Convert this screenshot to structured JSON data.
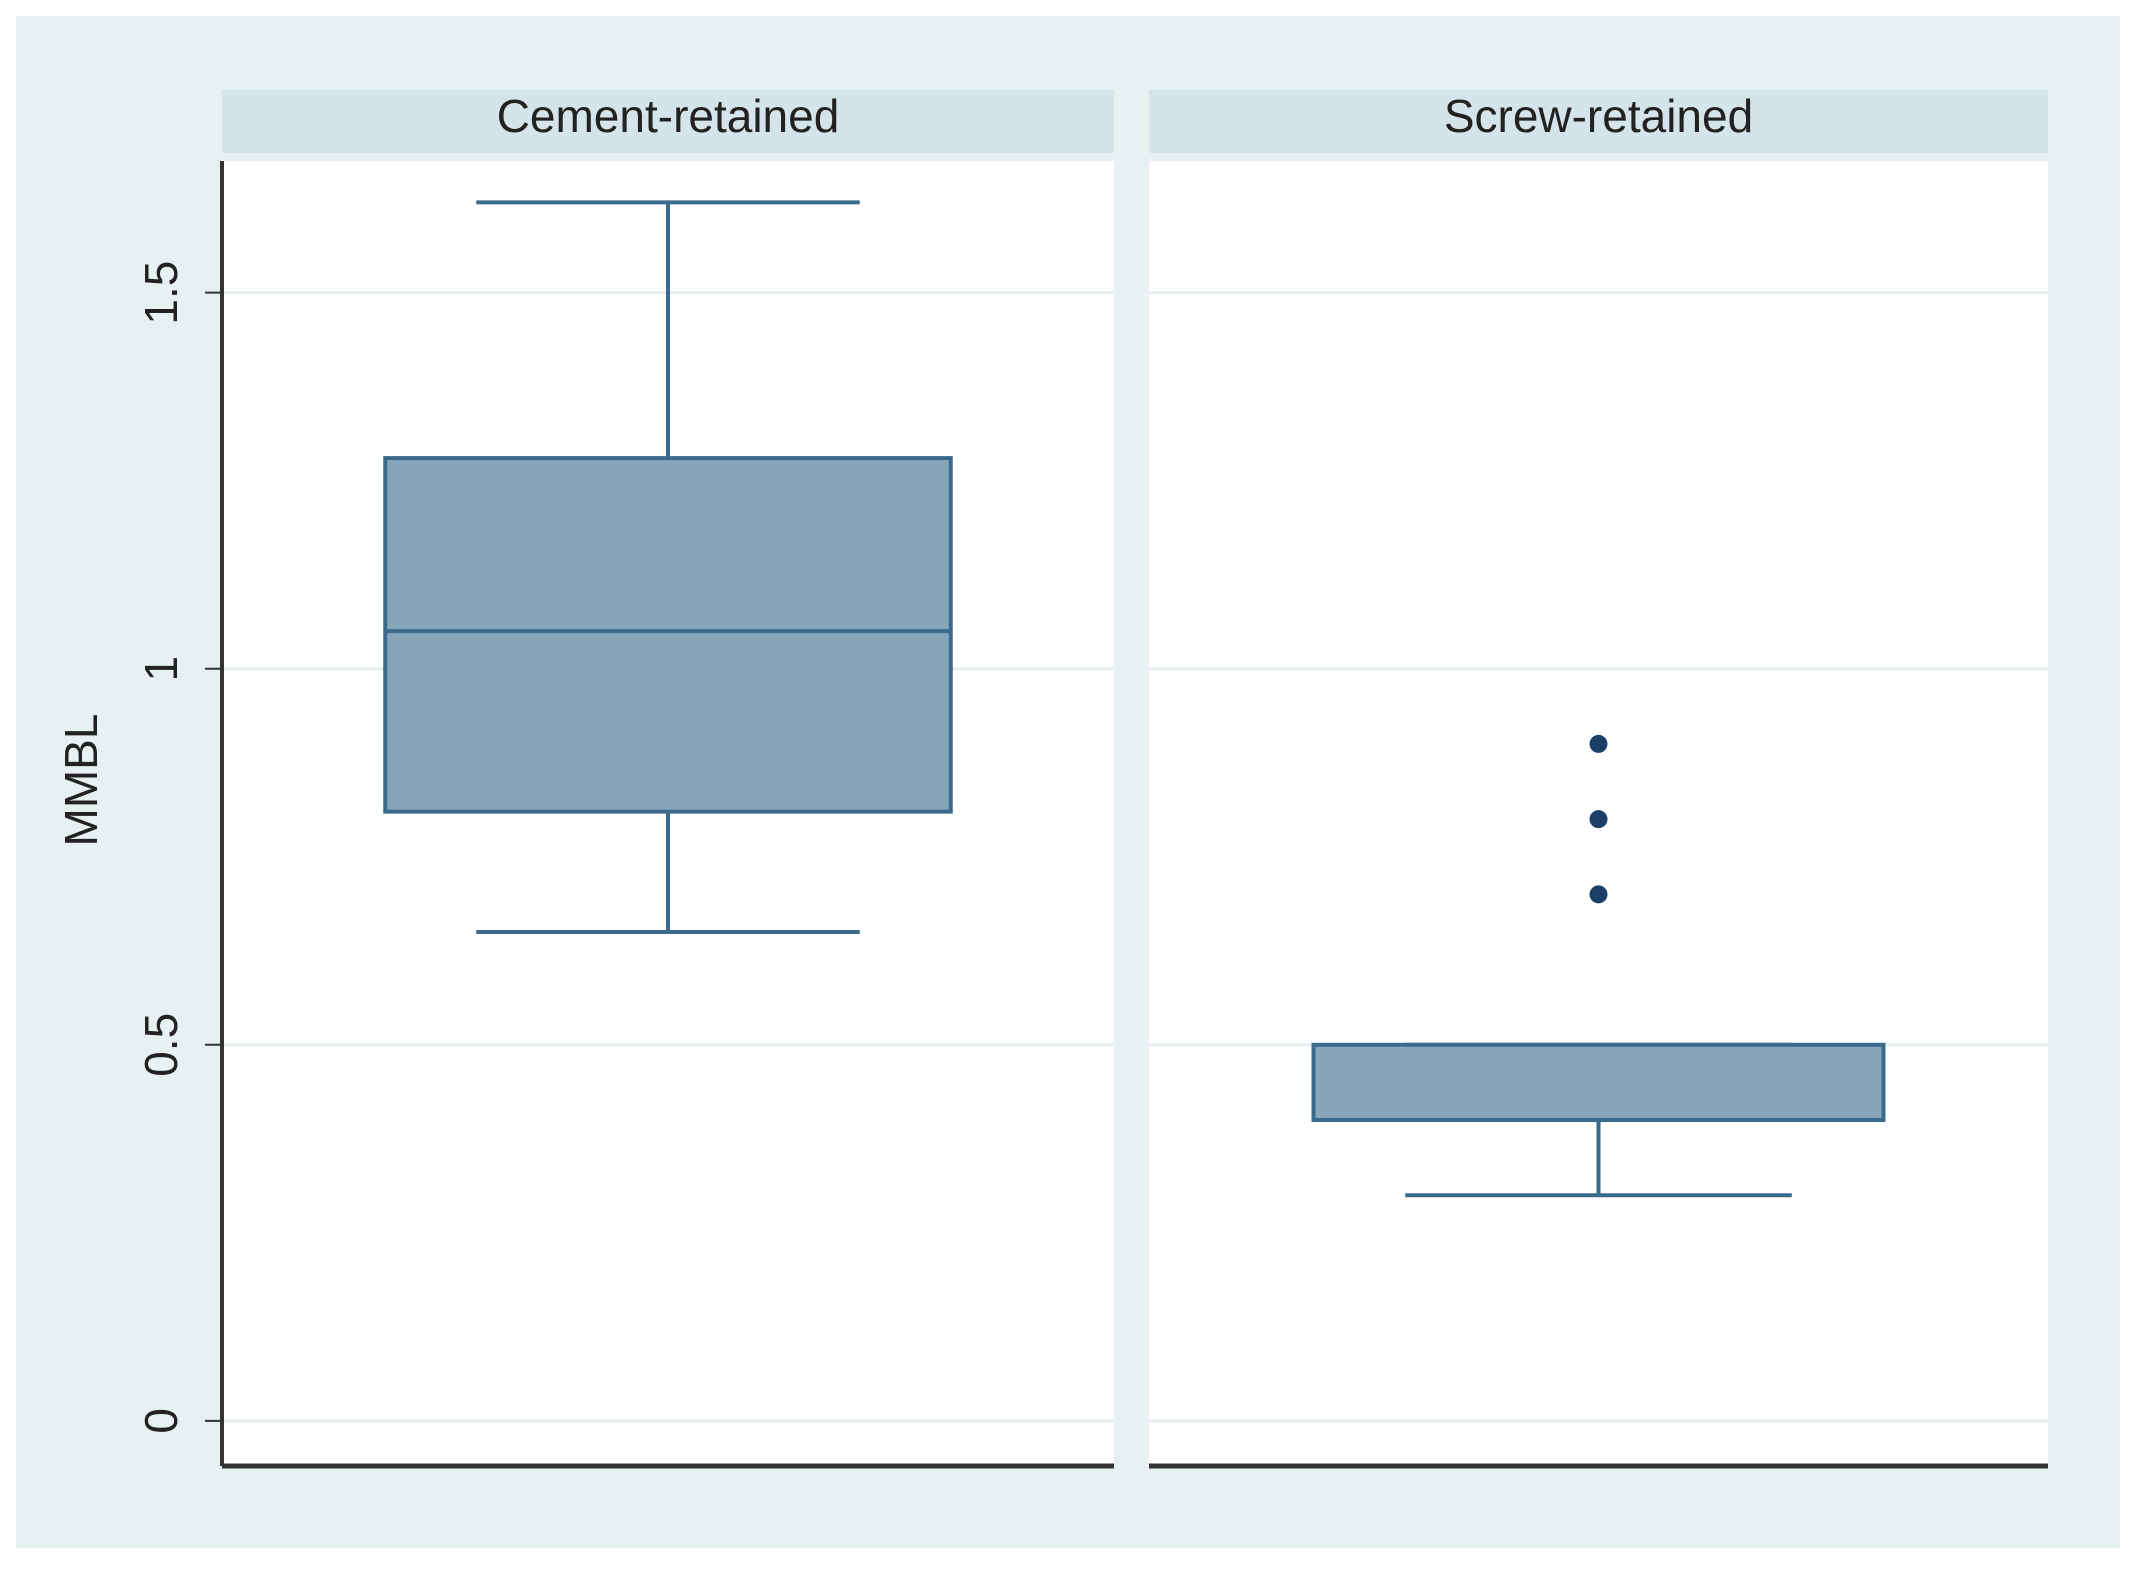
{
  "chart_data": {
    "type": "box",
    "y_label": "MMBL",
    "ylim": [
      -0.06,
      1.675
    ],
    "yticks": [
      0,
      0.5,
      1,
      1.5
    ],
    "grid": true,
    "fill_color": "#87a6ba",
    "line_color": "#3a6b8c",
    "outlier_color": "#1b3f68",
    "boxes": [
      {
        "name": "Cement-retained",
        "min": 0.65,
        "q1": 0.81,
        "median": 1.05,
        "q3": 1.28,
        "max": 1.62,
        "outliers": []
      },
      {
        "name": "Screw-retained",
        "min": 0.3,
        "q1": 0.4,
        "median": 0.4,
        "q3": 0.5,
        "max": 0.5,
        "outliers": [
          0.9,
          0.8,
          0.7
        ]
      }
    ]
  }
}
